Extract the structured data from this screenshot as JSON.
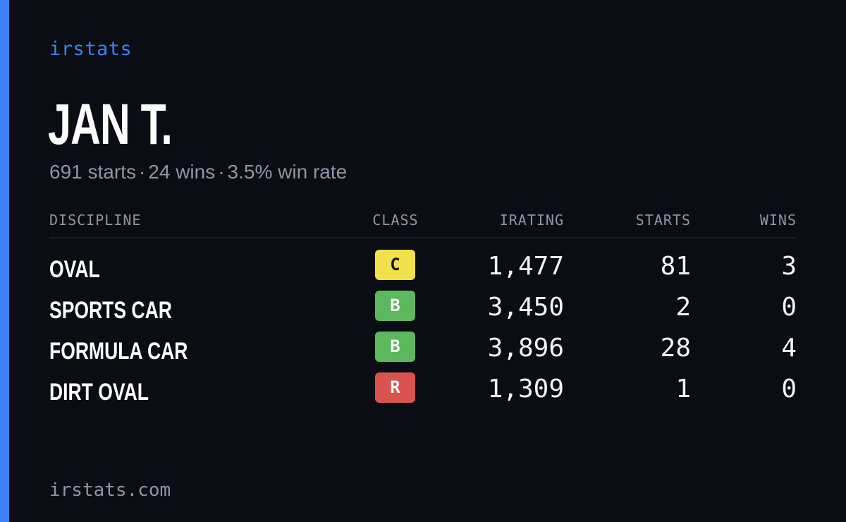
{
  "brand": "irstats",
  "driver": {
    "name": "JAN T.",
    "starts_text": "691 starts",
    "wins_text": "24 wins",
    "win_rate_text": "3.5% win rate",
    "separator": "·"
  },
  "table": {
    "headers": {
      "discipline": "DISCIPLINE",
      "class": "CLASS",
      "irating": "IRATING",
      "starts": "STARTS",
      "wins": "WINS"
    },
    "rows": [
      {
        "discipline": "OVAL",
        "class": "C",
        "class_color": "#f0e04a",
        "class_text_color": "#1a1a1a",
        "irating": "1,477",
        "starts": "81",
        "wins": "3"
      },
      {
        "discipline": "SPORTS CAR",
        "class": "B",
        "class_color": "#5cb85c",
        "class_text_color": "#ffffff",
        "irating": "3,450",
        "starts": "2",
        "wins": "0"
      },
      {
        "discipline": "FORMULA CAR",
        "class": "B",
        "class_color": "#5cb85c",
        "class_text_color": "#ffffff",
        "irating": "3,896",
        "starts": "28",
        "wins": "4"
      },
      {
        "discipline": "DIRT OVAL",
        "class": "R",
        "class_color": "#d9534f",
        "class_text_color": "#ffffff",
        "irating": "1,309",
        "starts": "1",
        "wins": "0"
      }
    ]
  },
  "footer": "irstats.com",
  "colors": {
    "accent": "#3b82f6",
    "background": "#0a0d14",
    "muted": "#8e96a6"
  }
}
